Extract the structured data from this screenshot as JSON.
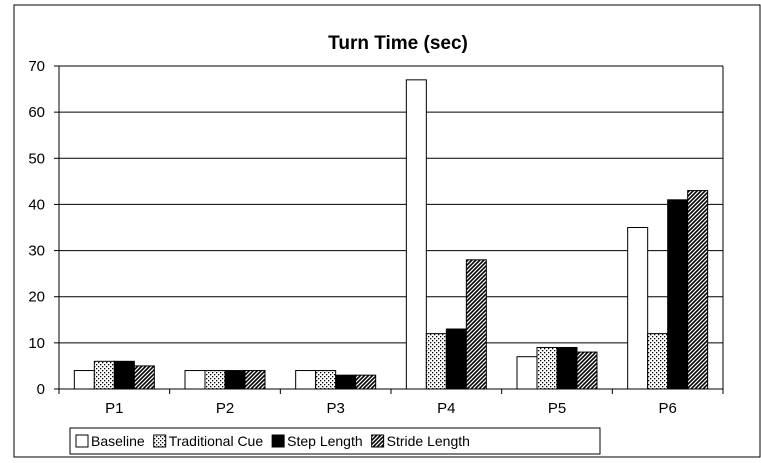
{
  "chart_data": {
    "type": "bar",
    "title": "Turn Time (sec)",
    "xlabel": "",
    "ylabel": "",
    "ylim": [
      0,
      70
    ],
    "yticks": [
      0,
      10,
      20,
      30,
      40,
      50,
      60,
      70
    ],
    "grid": true,
    "legend": "bottom",
    "categories": [
      "P1",
      "P2",
      "P3",
      "P4",
      "P5",
      "P6"
    ],
    "series": [
      {
        "name": "Baseline",
        "pattern": "white",
        "values": [
          4,
          4,
          4,
          67,
          7,
          35
        ]
      },
      {
        "name": "Traditional Cue",
        "pattern": "dots",
        "values": [
          6,
          4,
          4,
          12,
          9,
          12
        ]
      },
      {
        "name": "Step Length",
        "pattern": "black",
        "values": [
          6,
          4,
          3,
          13,
          9,
          41
        ]
      },
      {
        "name": "Stride Length",
        "pattern": "diagonal",
        "values": [
          5,
          4,
          3,
          28,
          8,
          43
        ]
      }
    ]
  }
}
